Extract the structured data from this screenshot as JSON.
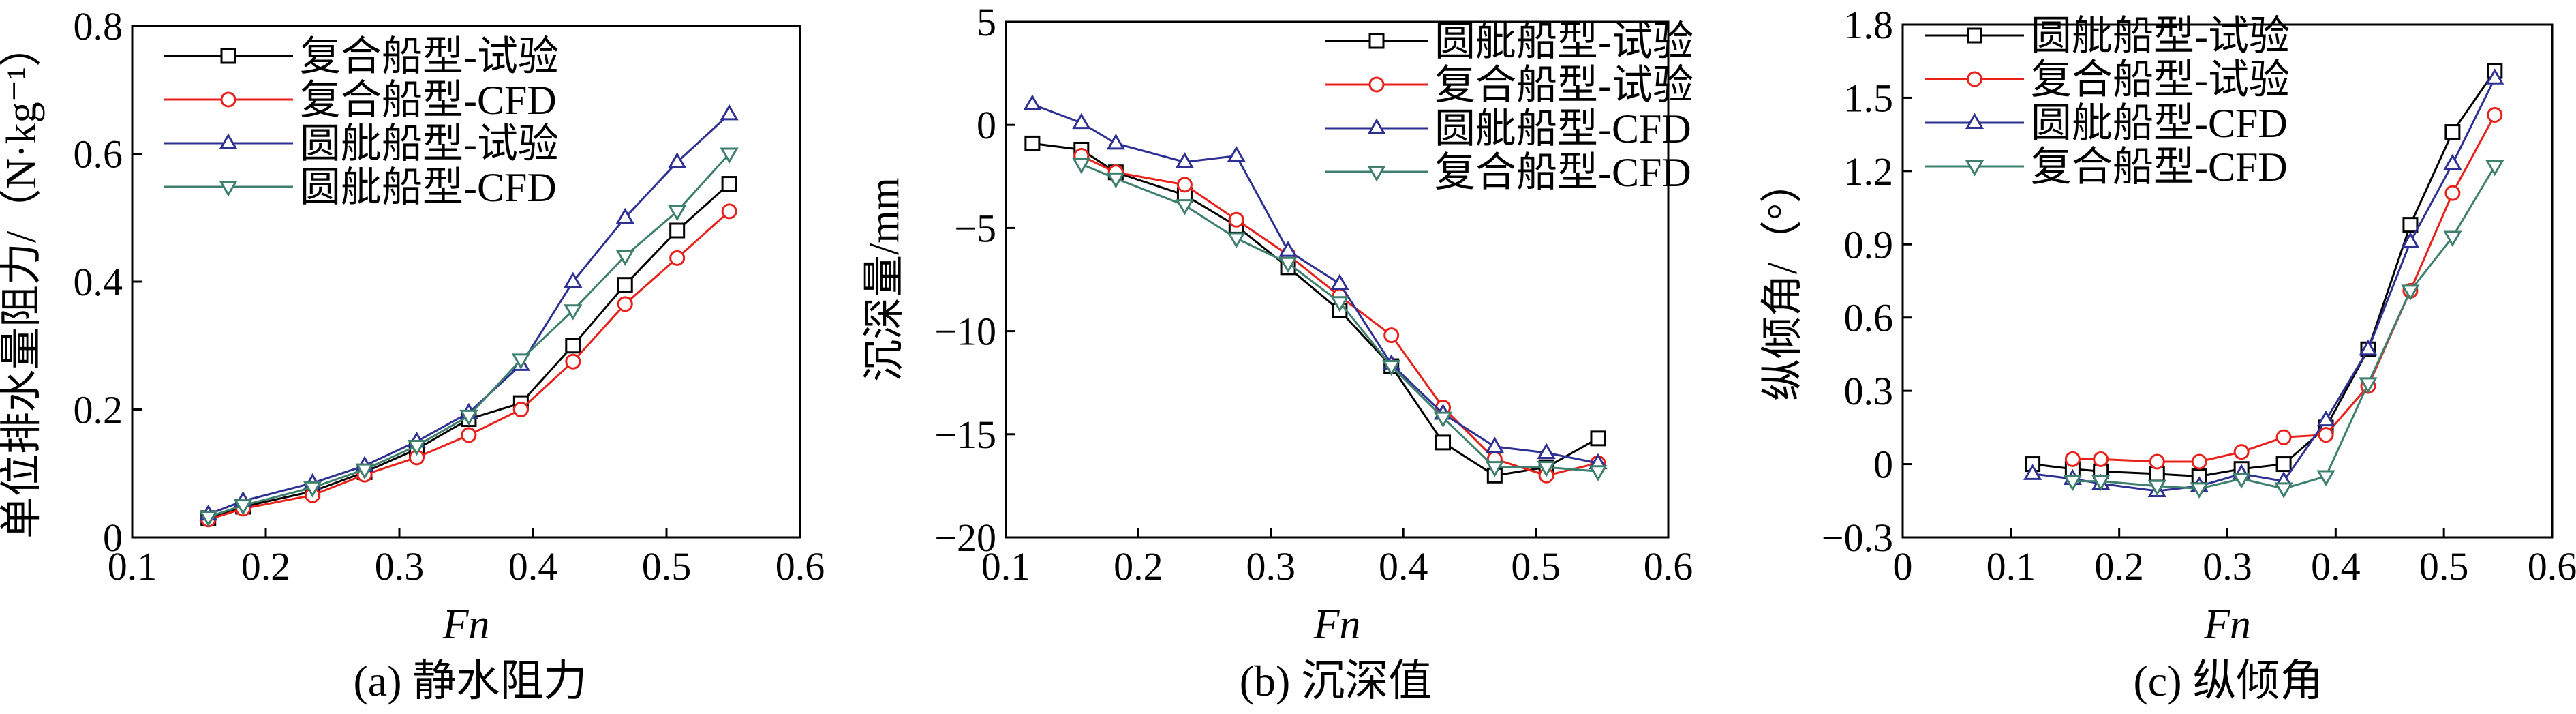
{
  "colors": {
    "black": "#000000",
    "red": "#e8211b",
    "blue": "#2e3192",
    "teal": "#3f7f6e"
  },
  "chart_data": [
    {
      "type": "line",
      "caption": "(a) 静水阻力",
      "xlabel": "Fn",
      "ylabel": "单位排水量阻力/（N·kg⁻¹）",
      "xlim": [
        0.1,
        0.6
      ],
      "ylim": [
        0,
        0.8
      ],
      "xticks": [
        0.1,
        0.2,
        0.3,
        0.4,
        0.5,
        0.6
      ],
      "yticks": [
        0,
        0.2,
        0.4,
        0.6,
        0.8
      ],
      "xtick_labels": [
        "0.1",
        "0.2",
        "0.3",
        "0.4",
        "0.5",
        "0.6"
      ],
      "ytick_labels": [
        "0",
        "0.2",
        "0.4",
        "0.6",
        "0.8"
      ],
      "legend_position": "top-left",
      "series": [
        {
          "name": "复合船型-试验",
          "color": "#000000",
          "marker": "square",
          "x": [
            0.157,
            0.183,
            0.235,
            0.274,
            0.313,
            0.352,
            0.391,
            0.43,
            0.469,
            0.508,
            0.547
          ],
          "y": [
            0.03,
            0.048,
            0.072,
            0.102,
            0.138,
            0.185,
            0.21,
            0.3,
            0.395,
            0.48,
            0.553
          ]
        },
        {
          "name": "复合船型-CFD",
          "color": "#e8211b",
          "marker": "circle",
          "x": [
            0.157,
            0.183,
            0.235,
            0.274,
            0.313,
            0.352,
            0.391,
            0.43,
            0.469,
            0.508,
            0.547
          ],
          "y": [
            0.028,
            0.045,
            0.066,
            0.098,
            0.125,
            0.16,
            0.2,
            0.275,
            0.365,
            0.437,
            0.51
          ]
        },
        {
          "name": "圆舭船型-试验",
          "color": "#2e3192",
          "marker": "triangle-up",
          "x": [
            0.157,
            0.183,
            0.235,
            0.274,
            0.313,
            0.352,
            0.391,
            0.43,
            0.469,
            0.508,
            0.547
          ],
          "y": [
            0.036,
            0.057,
            0.085,
            0.112,
            0.15,
            0.195,
            0.27,
            0.4,
            0.5,
            0.587,
            0.662
          ]
        },
        {
          "name": "圆舭船型-CFD",
          "color": "#3f7f6e",
          "marker": "triangle-down",
          "x": [
            0.157,
            0.183,
            0.235,
            0.274,
            0.313,
            0.352,
            0.391,
            0.43,
            0.469,
            0.508,
            0.547
          ],
          "y": [
            0.032,
            0.05,
            0.078,
            0.106,
            0.143,
            0.19,
            0.278,
            0.355,
            0.44,
            0.51,
            0.6
          ]
        }
      ]
    },
    {
      "type": "line",
      "caption": "(b) 沉深值",
      "xlabel": "Fn",
      "ylabel": "沉深量/mm",
      "xlim": [
        0.1,
        0.6
      ],
      "ylim": [
        -20,
        5
      ],
      "xticks": [
        0.1,
        0.2,
        0.3,
        0.4,
        0.5,
        0.6
      ],
      "yticks": [
        -20,
        -15,
        -10,
        -5,
        0,
        5
      ],
      "xtick_labels": [
        "0.1",
        "0.2",
        "0.3",
        "0.4",
        "0.5",
        "0.6"
      ],
      "ytick_labels": [
        "−20",
        "−15",
        "−10",
        "−5",
        "0",
        "5"
      ],
      "legend_position": "top-right",
      "series": [
        {
          "name": "圆舭船型-试验",
          "color": "#000000",
          "marker": "square",
          "x": [
            0.12,
            0.157,
            0.183,
            0.235,
            0.274,
            0.313,
            0.352,
            0.391,
            0.43,
            0.469,
            0.508,
            0.547
          ],
          "y": [
            -0.9,
            -1.2,
            -2.3,
            -3.4,
            -4.9,
            -6.9,
            -9.0,
            -11.7,
            -15.4,
            -17.0,
            -16.6,
            -15.2
          ]
        },
        {
          "name": "复合船型-试验",
          "color": "#e8211b",
          "marker": "circle",
          "x": [
            0.157,
            0.183,
            0.235,
            0.274,
            0.313,
            0.352,
            0.391,
            0.43,
            0.469,
            0.508,
            0.547
          ],
          "y": [
            -1.5,
            -2.3,
            -2.9,
            -4.6,
            -6.3,
            -8.3,
            -10.2,
            -13.7,
            -16.2,
            -17.0,
            -16.4
          ]
        },
        {
          "name": "圆舭船型-CFD",
          "color": "#2e3192",
          "marker": "triangle-up",
          "x": [
            0.12,
            0.157,
            0.183,
            0.235,
            0.274,
            0.313,
            0.352,
            0.391,
            0.43,
            0.469,
            0.508,
            0.547
          ],
          "y": [
            1.0,
            0.1,
            -0.9,
            -1.8,
            -1.5,
            -6.1,
            -7.7,
            -11.6,
            -14.0,
            -15.6,
            -15.9,
            -16.4
          ]
        },
        {
          "name": "复合船型-CFD",
          "color": "#3f7f6e",
          "marker": "triangle-down",
          "x": [
            0.157,
            0.183,
            0.235,
            0.274,
            0.313,
            0.352,
            0.391,
            0.43,
            0.469,
            0.508,
            0.547
          ],
          "y": [
            -1.9,
            -2.6,
            -3.9,
            -5.5,
            -6.7,
            -8.6,
            -11.7,
            -14.2,
            -16.6,
            -16.6,
            -16.8
          ]
        }
      ]
    },
    {
      "type": "line",
      "caption": "(c) 纵倾角",
      "xlabel": "Fn",
      "ylabel": "纵倾角/（°）",
      "xlim": [
        0,
        0.6
      ],
      "ylim": [
        -0.3,
        1.8
      ],
      "xticks": [
        0,
        0.1,
        0.2,
        0.3,
        0.4,
        0.5,
        0.6
      ],
      "yticks": [
        -0.3,
        0,
        0.3,
        0.6,
        0.9,
        1.2,
        1.5,
        1.8
      ],
      "xtick_labels": [
        "0",
        "0.1",
        "0.2",
        "0.3",
        "0.4",
        "0.5",
        "0.6"
      ],
      "ytick_labels": [
        "−0.3",
        "0",
        "0.3",
        "0.6",
        "0.9",
        "1.2",
        "1.5",
        "1.8"
      ],
      "legend_position": "top-left",
      "series": [
        {
          "name": "圆舭船型-试验",
          "color": "#000000",
          "marker": "square",
          "x": [
            0.12,
            0.157,
            0.183,
            0.235,
            0.274,
            0.313,
            0.352,
            0.391,
            0.43,
            0.469,
            0.508,
            0.547
          ],
          "y": [
            0.0,
            -0.02,
            -0.03,
            -0.04,
            -0.05,
            -0.02,
            0.0,
            0.15,
            0.47,
            0.98,
            1.36,
            1.61
          ]
        },
        {
          "name": "复合船型-试验",
          "color": "#e8211b",
          "marker": "circle",
          "x": [
            0.157,
            0.183,
            0.235,
            0.274,
            0.313,
            0.352,
            0.391,
            0.43,
            0.469,
            0.508,
            0.547
          ],
          "y": [
            0.02,
            0.02,
            0.01,
            0.01,
            0.05,
            0.11,
            0.12,
            0.32,
            0.71,
            1.11,
            1.43
          ]
        },
        {
          "name": "圆舭船型-CFD",
          "color": "#2e3192",
          "marker": "triangle-up",
          "x": [
            0.12,
            0.157,
            0.183,
            0.235,
            0.274,
            0.313,
            0.352,
            0.391,
            0.43,
            0.469,
            0.508,
            0.547
          ],
          "y": [
            -0.04,
            -0.06,
            -0.08,
            -0.11,
            -0.09,
            -0.04,
            -0.07,
            0.18,
            0.47,
            0.91,
            1.23,
            1.58
          ]
        },
        {
          "name": "复合船型-CFD",
          "color": "#3f7f6e",
          "marker": "triangle-down",
          "x": [
            0.157,
            0.183,
            0.235,
            0.274,
            0.313,
            0.352,
            0.391,
            0.43,
            0.469,
            0.508,
            0.547
          ],
          "y": [
            -0.07,
            -0.07,
            -0.09,
            -0.1,
            -0.06,
            -0.1,
            -0.05,
            0.33,
            0.71,
            0.93,
            1.22
          ]
        }
      ]
    }
  ]
}
